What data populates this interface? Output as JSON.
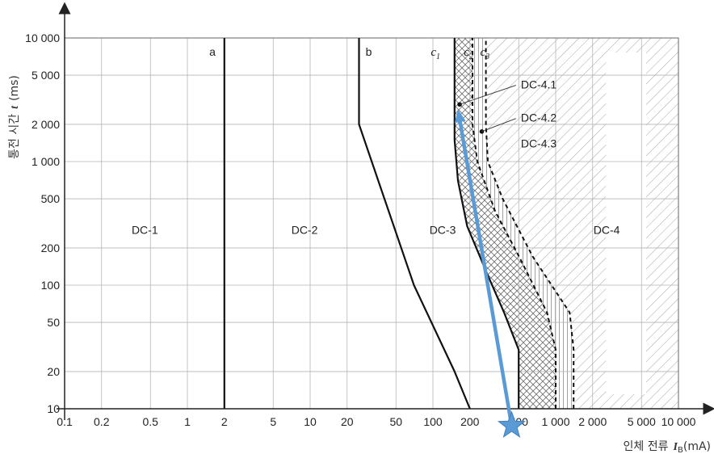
{
  "chart_data": {
    "type": "line",
    "x_scale": "log",
    "y_scale": "log",
    "xlim": [
      0.1,
      10000
    ],
    "ylim": [
      10,
      10000
    ],
    "x_ticks": [
      0.1,
      0.2,
      0.5,
      1,
      2,
      5,
      10,
      20,
      50,
      100,
      200,
      500,
      1000,
      2000,
      5000,
      10000
    ],
    "x_tick_labels": [
      "0.1",
      "0.2",
      "0.5",
      "1",
      "2",
      "5",
      "10",
      "20",
      "50",
      "100",
      "200",
      "500",
      "1 000",
      "2 000",
      "5 000",
      "10 000"
    ],
    "y_ticks": [
      10,
      20,
      50,
      100,
      200,
      500,
      1000,
      2000,
      5000,
      10000
    ],
    "y_tick_labels": [
      "10",
      "20",
      "50",
      "100",
      "200",
      "500",
      "1 000",
      "2 000",
      "5 000",
      "10 000"
    ],
    "xlabel_prefix": "인체 전류",
    "xlabel_var": "I",
    "xlabel_sub": "B",
    "xlabel_unit": "(mA)",
    "ylabel_prefix": "통전 시간",
    "ylabel_var": "t",
    "ylabel_unit": "(ms)",
    "grid": true,
    "series": [
      {
        "name": "a",
        "style": "solid",
        "points": [
          [
            2,
            10
          ],
          [
            2,
            10000
          ]
        ]
      },
      {
        "name": "b",
        "style": "solid",
        "points": [
          [
            200,
            10
          ],
          [
            150,
            20
          ],
          [
            70,
            100
          ],
          [
            25,
            2000
          ],
          [
            25,
            10000
          ]
        ]
      },
      {
        "name": "c1",
        "style": "solid",
        "points": [
          [
            500,
            10
          ],
          [
            500,
            30
          ],
          [
            380,
            60
          ],
          [
            280,
            120
          ],
          [
            190,
            300
          ],
          [
            160,
            700
          ],
          [
            150,
            1500
          ],
          [
            150,
            10000
          ]
        ]
      },
      {
        "name": "c2",
        "style": "dashed",
        "points": [
          [
            1000,
            10
          ],
          [
            1000,
            30
          ],
          [
            850,
            60
          ],
          [
            520,
            160
          ],
          [
            320,
            400
          ],
          [
            230,
            1000
          ],
          [
            210,
            2000
          ],
          [
            210,
            10000
          ]
        ]
      },
      {
        "name": "c3",
        "style": "dashed",
        "points": [
          [
            1400,
            10
          ],
          [
            1400,
            30
          ],
          [
            1300,
            60
          ],
          [
            650,
            170
          ],
          [
            370,
            500
          ],
          [
            280,
            1000
          ],
          [
            270,
            2000
          ],
          [
            270,
            10000
          ]
        ]
      }
    ],
    "curve_labels": [
      {
        "text": "a",
        "x": 1.6,
        "y": 7200,
        "italic": false
      },
      {
        "text": "b",
        "x": 30,
        "y": 7200,
        "italic": false
      },
      {
        "text": "c",
        "sub": "1",
        "x": 105,
        "y": 7200,
        "italic": true
      },
      {
        "text": "c",
        "sub": "2",
        "x": 195,
        "y": 7200,
        "italic": true
      },
      {
        "text": "c",
        "sub": "3",
        "x": 265,
        "y": 7200,
        "italic": true
      }
    ],
    "zones": [
      {
        "label": "DC-1",
        "x": 0.45,
        "y": 280
      },
      {
        "label": "DC-2",
        "x": 9,
        "y": 280
      },
      {
        "label": "DC-3",
        "x": 120,
        "y": 280
      },
      {
        "label": "DC-4",
        "x": 2600,
        "y": 280
      }
    ],
    "annotations": [
      {
        "label": "DC-4.1",
        "point": [
          165,
          2900
        ],
        "label_at": [
          520,
          3900
        ]
      },
      {
        "label": "DC-4.2",
        "point": [
          250,
          1750
        ],
        "label_at": [
          520,
          2100
        ]
      },
      {
        "label": "DC-4.3",
        "label_at": [
          520,
          1300
        ]
      }
    ],
    "overlay_arrow": {
      "from": [
        700,
        7.3
      ],
      "to": [
        160,
        2650
      ],
      "color": "#5b9bd5"
    },
    "overlay_star": {
      "at": [
        700,
        7.3
      ],
      "color": "#5b9bd5"
    }
  }
}
